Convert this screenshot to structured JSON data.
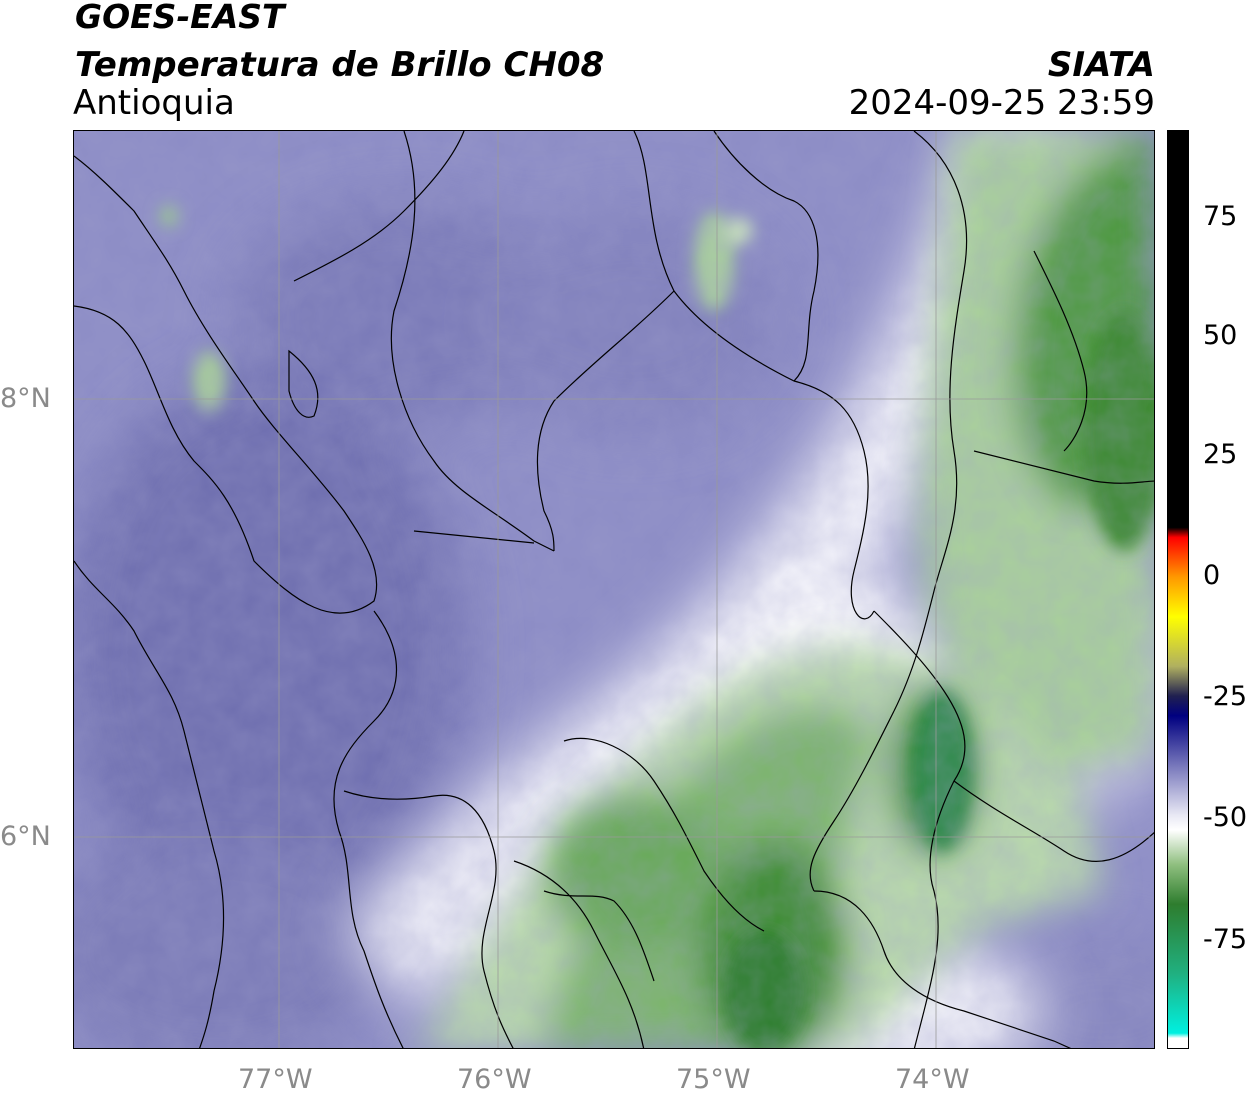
{
  "header": {
    "satellite": "GOES-EAST",
    "product": "Temperatura de Brillo CH08",
    "region": "Antioquia",
    "organization": "SIATA",
    "datetime": "2024-09-25 23:59"
  },
  "map": {
    "lon_ticks": [
      "77°W",
      "76°W",
      "75°W",
      "74°W"
    ],
    "lat_ticks": [
      "8°N",
      "6°N"
    ],
    "extent": {
      "lon_min": -77.95,
      "lon_max": -73.0,
      "lat_min": 5.03,
      "lat_max": 9.23
    },
    "colors": {
      "cold_purple": "#7777bb",
      "mid_white": "#f4f4fa",
      "green": "#3a8a2a",
      "dark_green": "#2c7a2c"
    }
  },
  "colorbar": {
    "ticks": [
      "75",
      "50",
      "25",
      "0",
      "-25",
      "-50",
      "-75"
    ],
    "range": [
      -95,
      90
    ],
    "stops": [
      {
        "value": 90,
        "color": "#000000"
      },
      {
        "value": 10,
        "color": "#000000"
      },
      {
        "value": 8,
        "color": "#ff0000"
      },
      {
        "value": 0,
        "color": "#ff9900"
      },
      {
        "value": -8,
        "color": "#ffff00"
      },
      {
        "value": -18,
        "color": "#b0b060"
      },
      {
        "value": -24,
        "color": "#202050"
      },
      {
        "value": -28,
        "color": "#000080"
      },
      {
        "value": -38,
        "color": "#7777bb"
      },
      {
        "value": -48,
        "color": "#e8e8f4"
      },
      {
        "value": -51,
        "color": "#ffffff"
      },
      {
        "value": -58,
        "color": "#8fbf7f"
      },
      {
        "value": -66,
        "color": "#2e7d2e"
      },
      {
        "value": -80,
        "color": "#20b080"
      },
      {
        "value": -92,
        "color": "#00f0e0"
      },
      {
        "value": -93,
        "color": "#ffffff"
      },
      {
        "value": -95,
        "color": "#ffffff"
      }
    ]
  }
}
